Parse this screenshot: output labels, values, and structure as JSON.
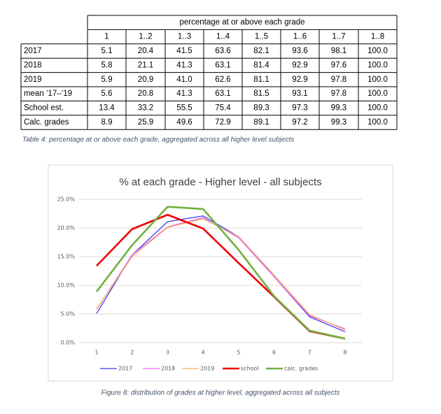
{
  "table": {
    "group_header": "percentage at or above each grade",
    "columns": [
      "1",
      "1..2",
      "1..3",
      "1..4",
      "1..5",
      "1..6",
      "1..7",
      "1..8"
    ],
    "rows": [
      [
        "2017",
        "5.1",
        "20.4",
        "41.5",
        "63.6",
        "82.1",
        "93.6",
        "98.1",
        "100.0"
      ],
      [
        "2018",
        "5.8",
        "21.1",
        "41.3",
        "63.1",
        "81.4",
        "92.9",
        "97.6",
        "100.0"
      ],
      [
        "2019",
        "5.9",
        "20.9",
        "41.0",
        "62.6",
        "81.1",
        "92.9",
        "97.8",
        "100.0"
      ],
      [
        "mean ‘17–‘19",
        "5.6",
        "20.8",
        "41.3",
        "63.1",
        "81.5",
        "93.1",
        "97.8",
        "100.0"
      ],
      [
        "School est.",
        "13.4",
        "33.2",
        "55.5",
        "75.4",
        "89.3",
        "97.3",
        "99.3",
        "100.0"
      ],
      [
        "Calc. grades",
        "8.9",
        "25.9",
        "49.6",
        "72.9",
        "89.1",
        "97.2",
        "99.3",
        "100.0"
      ]
    ],
    "caption": "Table 4: percentage at or above each grade, aggregated across all higher level subjects"
  },
  "chart_data": {
    "type": "line",
    "title": "% at each grade - Higher level - all subjects",
    "categories": [
      "1",
      "2",
      "3",
      "4",
      "5",
      "6",
      "7",
      "8"
    ],
    "series": [
      {
        "name": "2017",
        "color": "#3a3af0",
        "values": [
          5.1,
          15.3,
          21.1,
          22.1,
          18.5,
          11.5,
          4.5,
          1.9
        ]
      },
      {
        "name": "2018",
        "color": "#f064f0",
        "values": [
          5.8,
          15.3,
          20.2,
          21.8,
          18.3,
          11.5,
          4.7,
          2.4
        ]
      },
      {
        "name": "2019",
        "color": "#f0b060",
        "values": [
          5.9,
          15.0,
          20.1,
          21.6,
          18.5,
          11.8,
          4.9,
          2.2
        ]
      },
      {
        "name": "school",
        "color": "#ee0000",
        "values": [
          13.4,
          19.8,
          22.3,
          19.9,
          13.9,
          8.0,
          2.0,
          0.7
        ]
      },
      {
        "name": "calc. grades",
        "color": "#70b040",
        "values": [
          8.9,
          17.0,
          23.7,
          23.3,
          16.2,
          8.1,
          2.1,
          0.7
        ]
      }
    ],
    "ylim": [
      0,
      25
    ],
    "yticks": [
      {
        "value": 0,
        "label": "0.0%"
      },
      {
        "value": 5,
        "label": "5.0%"
      },
      {
        "value": 10,
        "label": "10.0%"
      },
      {
        "value": 15,
        "label": "15.0%"
      },
      {
        "value": 20,
        "label": "20.0%"
      },
      {
        "value": 25,
        "label": "25.0%"
      }
    ],
    "grid": true,
    "legend": "bottom",
    "caption": "Figure 8: distribution of grades at higher level, aggregated across all subjects"
  }
}
